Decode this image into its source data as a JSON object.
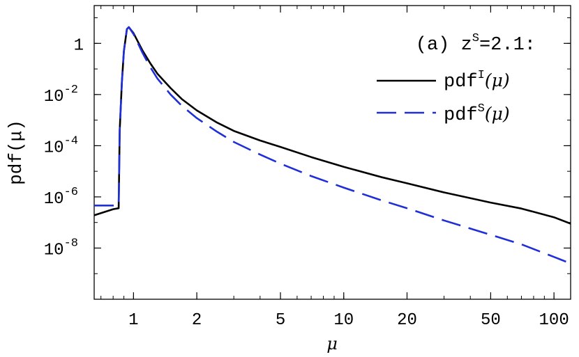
{
  "chart_data": {
    "type": "line",
    "title": "",
    "xlabel": "μ",
    "ylabel": "pdf(μ)",
    "xscale": "log",
    "yscale": "log",
    "xlim": [
      0.65,
      120
    ],
    "ylim": [
      1e-10,
      30
    ],
    "xticks": [
      {
        "value": 1,
        "label": "1"
      },
      {
        "value": 2,
        "label": "2"
      },
      {
        "value": 5,
        "label": "5"
      },
      {
        "value": 10,
        "label": "10"
      },
      {
        "value": 20,
        "label": "20"
      },
      {
        "value": 50,
        "label": "50"
      },
      {
        "value": 100,
        "label": "100"
      }
    ],
    "yticks": [
      {
        "value": 1,
        "base": "1",
        "exp": ""
      },
      {
        "value": 0.01,
        "base": "10",
        "exp": "-2"
      },
      {
        "value": 0.0001,
        "base": "10",
        "exp": "-4"
      },
      {
        "value": 1e-06,
        "base": "10",
        "exp": "-6"
      },
      {
        "value": 1e-08,
        "base": "10",
        "exp": "-8"
      }
    ],
    "legend": {
      "placement": "top-right",
      "header": {
        "prefix": "(a) z",
        "sup": "S",
        "suffix": "=2.1:"
      },
      "entries": [
        {
          "prefix": "pdf",
          "sup": "I",
          "arg": "(μ)"
        },
        {
          "prefix": "pdf",
          "sup": "S",
          "arg": "(μ)"
        }
      ]
    },
    "series": [
      {
        "key": "pdf_I",
        "color": "#000000",
        "dash": "solid",
        "points": [
          [
            0.65,
            1.9e-07
          ],
          [
            0.8,
            3.3e-07
          ],
          [
            0.85,
            3.6e-07
          ],
          [
            0.86,
            0.0004
          ],
          [
            0.88,
            0.03
          ],
          [
            0.9,
            0.5
          ],
          [
            0.93,
            3.6
          ],
          [
            0.95,
            4.3
          ],
          [
            1.0,
            2.5
          ],
          [
            1.1,
            0.55
          ],
          [
            1.2,
            0.17
          ],
          [
            1.3,
            0.065
          ],
          [
            1.5,
            0.018
          ],
          [
            1.7,
            0.0066
          ],
          [
            2.0,
            0.0024
          ],
          [
            2.5,
            0.0008
          ],
          [
            3.0,
            0.00038
          ],
          [
            4.0,
            0.00016
          ],
          [
            5.0,
            9e-05
          ],
          [
            7.0,
            3.6e-05
          ],
          [
            10.0,
            1.5e-05
          ],
          [
            15.0,
            6e-06
          ],
          [
            20.0,
            3.4e-06
          ],
          [
            30.0,
            1.5e-06
          ],
          [
            50.0,
            6e-07
          ],
          [
            70.0,
            3.5e-07
          ],
          [
            100.0,
            1.6e-07
          ],
          [
            120.0,
            9e-08
          ]
        ]
      },
      {
        "key": "pdf_S",
        "color": "#1f2fd6",
        "dash": "long-dash",
        "points": [
          [
            0.65,
            4.6e-07
          ],
          [
            0.8,
            4.6e-07
          ],
          [
            0.85,
            4.6e-07
          ],
          [
            0.86,
            0.0004
          ],
          [
            0.88,
            0.03
          ],
          [
            0.9,
            0.5
          ],
          [
            0.93,
            3.6
          ],
          [
            0.95,
            4.3
          ],
          [
            1.0,
            2.3
          ],
          [
            1.1,
            0.45
          ],
          [
            1.2,
            0.12
          ],
          [
            1.3,
            0.042
          ],
          [
            1.5,
            0.01
          ],
          [
            1.7,
            0.0036
          ],
          [
            2.0,
            0.0012
          ],
          [
            2.5,
            0.00035
          ],
          [
            3.0,
            0.00014
          ],
          [
            4.0,
            4.5e-05
          ],
          [
            5.0,
            2e-05
          ],
          [
            7.0,
            6.5e-06
          ],
          [
            10.0,
            2.3e-06
          ],
          [
            15.0,
            7.5e-07
          ],
          [
            20.0,
            3.6e-07
          ],
          [
            30.0,
            1.2e-07
          ],
          [
            50.0,
            3.3e-08
          ],
          [
            70.0,
            1.4e-08
          ],
          [
            100.0,
            4.5e-09
          ],
          [
            120.0,
            2.5e-09
          ]
        ]
      }
    ]
  }
}
